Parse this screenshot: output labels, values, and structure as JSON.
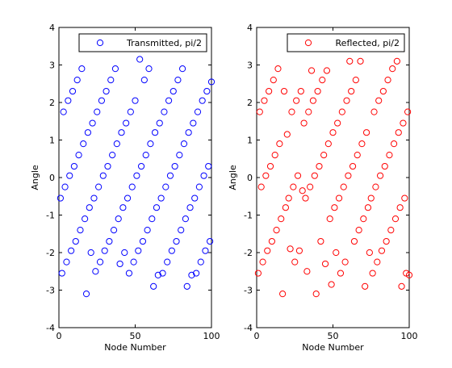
{
  "chart_data": [
    {
      "type": "scatter",
      "xlabel": "Node Number",
      "ylabel": "Angle",
      "xlim": [
        0,
        100
      ],
      "ylim": [
        -4,
        4
      ],
      "xticks": [
        0,
        50,
        100
      ],
      "yticks": [
        -4,
        -3,
        -2,
        -1,
        0,
        1,
        2,
        3,
        4
      ],
      "grid": false,
      "legend_position": "top-right",
      "series": [
        {
          "name": "Transmitted, pi/2",
          "color": "#0000ff",
          "marker": "circle",
          "x": [
            1,
            2,
            3,
            4,
            5,
            6,
            7,
            8,
            9,
            10,
            11,
            12,
            13,
            14,
            15,
            16,
            17,
            18,
            19,
            20,
            21,
            22,
            23,
            24,
            25,
            26,
            27,
            28,
            29,
            30,
            31,
            32,
            33,
            34,
            35,
            36,
            37,
            38,
            39,
            40,
            41,
            42,
            43,
            44,
            45,
            46,
            47,
            48,
            49,
            50,
            51,
            52,
            53,
            54,
            55,
            56,
            57,
            58,
            59,
            60,
            61,
            62,
            63,
            64,
            65,
            66,
            67,
            68,
            69,
            70,
            71,
            72,
            73,
            74,
            75,
            76,
            77,
            78,
            79,
            80,
            81,
            82,
            83,
            84,
            85,
            86,
            87,
            88,
            89,
            90,
            91,
            92,
            93,
            94,
            95,
            96,
            97,
            98,
            99,
            100
          ],
          "y": [
            -0.55,
            -2.55,
            1.75,
            -0.25,
            -2.25,
            2.05,
            0.05,
            -1.95,
            2.3,
            0.3,
            -1.7,
            2.6,
            0.6,
            -1.4,
            2.9,
            0.9,
            -1.1,
            -3.1,
            1.2,
            -0.8,
            -2.0,
            1.45,
            -0.55,
            -2.5,
            1.75,
            -0.25,
            -2.25,
            2.05,
            0.05,
            -1.95,
            2.3,
            0.3,
            -1.7,
            2.6,
            0.6,
            -1.4,
            2.9,
            0.9,
            -1.1,
            -2.3,
            1.2,
            -0.8,
            -2.0,
            1.45,
            -0.55,
            -2.55,
            1.75,
            -0.25,
            -2.25,
            2.05,
            0.05,
            -1.95,
            3.15,
            0.3,
            -1.7,
            2.6,
            0.6,
            -1.4,
            2.9,
            0.9,
            -1.1,
            -2.9,
            1.2,
            -0.8,
            -2.6,
            1.45,
            -0.55,
            -2.55,
            1.75,
            -0.25,
            -2.25,
            2.05,
            0.05,
            -1.95,
            2.3,
            0.3,
            -1.7,
            2.6,
            0.6,
            -1.4,
            2.9,
            0.9,
            -1.1,
            -2.9,
            1.2,
            -0.8,
            -2.6,
            1.45,
            -0.55,
            -2.55,
            1.75,
            -0.25,
            -2.25,
            2.05,
            0.05,
            -1.95,
            2.3,
            0.3,
            -1.7,
            2.55
          ],
          "x_visible": [
            1,
            2,
            3,
            4,
            5,
            6,
            7,
            8,
            9,
            10,
            11,
            12,
            13,
            14,
            15,
            16,
            17,
            18,
            19,
            20,
            21,
            22,
            23,
            24,
            25,
            26,
            27,
            28,
            29,
            30,
            31,
            32,
            33,
            34,
            35,
            36,
            37,
            38,
            39,
            40,
            41,
            42,
            43,
            44,
            45,
            46,
            47,
            48,
            49,
            50,
            51,
            52,
            53,
            54,
            55,
            56,
            57,
            58,
            59,
            60,
            61,
            62,
            63,
            64,
            65,
            66,
            67,
            68,
            69,
            70,
            71,
            72,
            73,
            74,
            75,
            76,
            77,
            78,
            79,
            80,
            81,
            82,
            83,
            84,
            85,
            86,
            87,
            88,
            89,
            90,
            91,
            92,
            93,
            94,
            95,
            96,
            97,
            98,
            99,
            100
          ]
        }
      ]
    },
    {
      "type": "scatter",
      "xlabel": "Node Number",
      "ylabel": "Angle",
      "xlim": [
        0,
        100
      ],
      "ylim": [
        -4,
        4
      ],
      "xticks": [
        0,
        50,
        100
      ],
      "yticks": [
        -4,
        -3,
        -2,
        -1,
        0,
        1,
        2,
        3,
        4
      ],
      "grid": false,
      "legend_position": "top-right",
      "series": [
        {
          "name": "Reflected, pi/2",
          "color": "#ff0000",
          "marker": "circle",
          "x": [
            1,
            2,
            3,
            4,
            5,
            6,
            7,
            8,
            9,
            10,
            11,
            12,
            13,
            14,
            15,
            16,
            17,
            18,
            19,
            20,
            21,
            22,
            23,
            24,
            25,
            26,
            27,
            28,
            29,
            30,
            31,
            32,
            33,
            34,
            35,
            36,
            37,
            38,
            39,
            40,
            41,
            42,
            43,
            44,
            45,
            46,
            47,
            48,
            49,
            50,
            51,
            52,
            53,
            54,
            55,
            56,
            57,
            58,
            59,
            60,
            61,
            62,
            63,
            64,
            65,
            66,
            67,
            68,
            69,
            70,
            71,
            72,
            73,
            74,
            75,
            76,
            77,
            78,
            79,
            80,
            81,
            82,
            83,
            84,
            85,
            86,
            87,
            88,
            89,
            90,
            91,
            92,
            93,
            94,
            95,
            96,
            97,
            98,
            99,
            100
          ],
          "y": [
            -2.55,
            1.75,
            -0.25,
            -2.25,
            2.05,
            0.05,
            -1.95,
            2.3,
            0.3,
            -1.7,
            2.6,
            0.6,
            -1.4,
            2.9,
            0.9,
            -1.1,
            -3.1,
            2.3,
            -0.8,
            1.15,
            -0.55,
            -1.9,
            1.75,
            -0.25,
            -2.25,
            2.05,
            0.05,
            -1.95,
            2.3,
            -0.35,
            1.45,
            -0.55,
            -2.5,
            1.75,
            -0.25,
            2.85,
            2.05,
            0.05,
            -3.1,
            2.3,
            0.3,
            -1.7,
            2.6,
            0.6,
            -2.3,
            2.85,
            0.9,
            -1.1,
            -2.85,
            1.2,
            -0.8,
            -2.0,
            1.45,
            -0.55,
            -2.55,
            1.75,
            -0.25,
            -2.25,
            2.05,
            0.05,
            3.1,
            2.3,
            0.3,
            -1.7,
            2.6,
            0.6,
            -1.4,
            3.1,
            0.9,
            -1.1,
            -2.9,
            1.2,
            -0.8,
            -2.0,
            -0.55,
            -2.55,
            1.75,
            -0.25,
            -2.25,
            2.05,
            0.05,
            -1.95,
            2.3,
            0.3,
            -1.7,
            2.6,
            0.6,
            -1.4,
            2.9,
            0.9,
            -1.1,
            3.1,
            1.2,
            -0.8,
            -2.9,
            1.45,
            -0.55,
            -2.55,
            1.75,
            -2.6
          ],
          "x_visible": [
            1,
            2,
            3,
            4,
            5,
            6,
            7,
            8,
            9,
            10,
            11,
            12,
            13,
            14,
            15,
            16,
            17,
            18,
            19,
            20,
            21,
            22,
            23,
            24,
            25,
            26,
            27,
            28,
            29,
            30,
            31,
            32,
            33,
            34,
            35,
            36,
            37,
            38,
            39,
            40,
            41,
            42,
            43,
            44,
            45,
            46,
            47,
            48,
            49,
            50,
            51,
            52,
            53,
            54,
            55,
            56,
            57,
            58,
            59,
            60,
            61,
            62,
            63,
            64,
            65,
            66,
            67,
            68,
            69,
            70,
            71,
            72,
            73,
            74,
            75,
            76,
            77,
            78,
            79,
            80,
            81,
            82,
            83,
            84,
            85,
            86,
            87,
            88,
            89,
            90,
            91,
            92,
            93,
            94,
            95,
            96,
            97,
            98,
            99,
            100
          ]
        }
      ]
    }
  ]
}
